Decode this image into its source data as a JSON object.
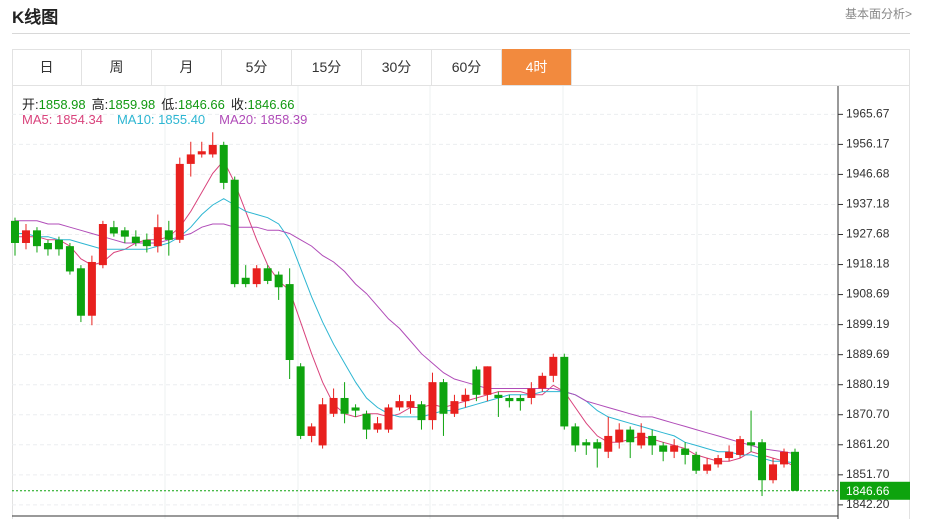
{
  "header": {
    "title": "K线图",
    "link": "基本面分析>"
  },
  "tabs": [
    {
      "label": "日"
    },
    {
      "label": "周"
    },
    {
      "label": "月"
    },
    {
      "label": "5分"
    },
    {
      "label": "15分"
    },
    {
      "label": "30分"
    },
    {
      "label": "60分"
    },
    {
      "label": "4时",
      "active": true
    }
  ],
  "chart_data": {
    "type": "candlestick",
    "info": [
      {
        "label": "开:",
        "value": 1858.98
      },
      {
        "label": "高:",
        "value": 1859.98
      },
      {
        "label": "低:",
        "value": 1846.66
      },
      {
        "label": "收:",
        "value": 1846.66
      }
    ],
    "info_color": "#119911",
    "up_color": "#e8201e",
    "down_color": "#0ea30e",
    "ylim": [
      1839,
      1974
    ],
    "yticks": [
      1965.67,
      1956.17,
      1946.68,
      1937.18,
      1927.68,
      1918.18,
      1908.69,
      1899.19,
      1889.69,
      1880.19,
      {
        "value": 1870.7,
        "label": "1870.70"
      },
      {
        "value": 1861.2,
        "label": "1861.20"
      },
      {
        "value": 1851.7,
        "label": "1851.70"
      },
      {
        "value": 1842.2,
        "label": "1842.20"
      }
    ],
    "grid": true,
    "last_price": 1846.66,
    "candles": [
      {
        "open": 1932,
        "high": 1933,
        "low": 1921,
        "close": 1925
      },
      {
        "open": 1925,
        "high": 1931,
        "low": 1923,
        "close": 1929
      },
      {
        "open": 1929,
        "high": 1930,
        "low": 1922,
        "close": 1924
      },
      {
        "open": 1925,
        "high": 1926,
        "low": 1921,
        "close": 1923
      },
      {
        "open": 1926,
        "high": 1927,
        "low": 1921,
        "close": 1923
      },
      {
        "open": 1924,
        "high": 1925,
        "low": 1915,
        "close": 1916
      },
      {
        "open": 1917,
        "high": 1918,
        "low": 1900,
        "close": 1902
      },
      {
        "open": 1902,
        "high": 1921,
        "low": 1899,
        "close": 1919
      },
      {
        "open": 1918,
        "high": 1932,
        "low": 1917,
        "close": 1931
      },
      {
        "open": 1930,
        "high": 1932,
        "low": 1927,
        "close": 1928
      },
      {
        "open": 1929,
        "high": 1930,
        "low": 1925,
        "close": 1927
      },
      {
        "open": 1927,
        "high": 1929,
        "low": 1924,
        "close": 1925
      },
      {
        "open": 1926,
        "high": 1928,
        "low": 1922,
        "close": 1924
      },
      {
        "open": 1924,
        "high": 1934,
        "low": 1922,
        "close": 1930
      },
      {
        "open": 1929,
        "high": 1932,
        "low": 1921,
        "close": 1926
      },
      {
        "open": 1926,
        "high": 1952,
        "low": 1925,
        "close": 1950
      },
      {
        "open": 1950,
        "high": 1957,
        "low": 1946,
        "close": 1953
      },
      {
        "open": 1953,
        "high": 1957,
        "low": 1952,
        "close": 1954
      },
      {
        "open": 1953,
        "high": 1960,
        "low": 1952,
        "close": 1956
      },
      {
        "open": 1956,
        "high": 1957,
        "low": 1942,
        "close": 1944
      },
      {
        "open": 1945,
        "high": 1946,
        "low": 1911,
        "close": 1912
      },
      {
        "open": 1914,
        "high": 1918,
        "low": 1911,
        "close": 1912
      },
      {
        "open": 1912,
        "high": 1918,
        "low": 1911,
        "close": 1917
      },
      {
        "open": 1917,
        "high": 1918,
        "low": 1912,
        "close": 1913
      },
      {
        "open": 1915,
        "high": 1916,
        "low": 1907,
        "close": 1911
      },
      {
        "open": 1912,
        "high": 1917,
        "low": 1882,
        "close": 1888
      },
      {
        "open": 1886,
        "high": 1887,
        "low": 1863,
        "close": 1864
      },
      {
        "open": 1864,
        "high": 1868,
        "low": 1862,
        "close": 1867
      },
      {
        "open": 1861,
        "high": 1876,
        "low": 1860,
        "close": 1874
      },
      {
        "open": 1871,
        "high": 1879,
        "low": 1870,
        "close": 1876
      },
      {
        "open": 1876,
        "high": 1881,
        "low": 1868,
        "close": 1871
      },
      {
        "open": 1873,
        "high": 1874,
        "low": 1870,
        "close": 1872
      },
      {
        "open": 1871,
        "high": 1872,
        "low": 1863,
        "close": 1866
      },
      {
        "open": 1866,
        "high": 1870,
        "low": 1865,
        "close": 1868
      },
      {
        "open": 1866,
        "high": 1874,
        "low": 1865,
        "close": 1873
      },
      {
        "open": 1873,
        "high": 1877,
        "low": 1872,
        "close": 1875
      },
      {
        "open": 1873,
        "high": 1877,
        "low": 1871,
        "close": 1875
      },
      {
        "open": 1874,
        "high": 1875,
        "low": 1866,
        "close": 1869
      },
      {
        "open": 1869,
        "high": 1884,
        "low": 1866,
        "close": 1881
      },
      {
        "open": 1881,
        "high": 1882,
        "low": 1864,
        "close": 1871
      },
      {
        "open": 1871,
        "high": 1877,
        "low": 1870,
        "close": 1875
      },
      {
        "open": 1875,
        "high": 1879,
        "low": 1873,
        "close": 1877
      },
      {
        "open": 1885,
        "high": 1886,
        "low": 1875,
        "close": 1877
      },
      {
        "open": 1877,
        "high": 1886,
        "low": 1875,
        "close": 1886
      },
      {
        "open": 1877,
        "high": 1878,
        "low": 1870,
        "close": 1876
      },
      {
        "open": 1876,
        "high": 1877,
        "low": 1873,
        "close": 1875
      },
      {
        "open": 1876,
        "high": 1877,
        "low": 1872,
        "close": 1875
      },
      {
        "open": 1876,
        "high": 1881,
        "low": 1874,
        "close": 1879
      },
      {
        "open": 1879,
        "high": 1884,
        "low": 1878,
        "close": 1883
      },
      {
        "open": 1883,
        "high": 1890,
        "low": 1881,
        "close": 1889
      },
      {
        "open": 1889,
        "high": 1890,
        "low": 1866,
        "close": 1867
      },
      {
        "open": 1867,
        "high": 1868,
        "low": 1859,
        "close": 1861
      },
      {
        "open": 1862,
        "high": 1863,
        "low": 1858,
        "close": 1861
      },
      {
        "open": 1862,
        "high": 1863,
        "low": 1854,
        "close": 1860
      },
      {
        "open": 1859,
        "high": 1870,
        "low": 1857,
        "close": 1864
      },
      {
        "open": 1862,
        "high": 1868,
        "low": 1860,
        "close": 1866
      },
      {
        "open": 1866,
        "high": 1867,
        "low": 1857,
        "close": 1862
      },
      {
        "open": 1861,
        "high": 1868,
        "low": 1860,
        "close": 1865
      },
      {
        "open": 1864,
        "high": 1866,
        "low": 1858,
        "close": 1861
      },
      {
        "open": 1861,
        "high": 1862,
        "low": 1856,
        "close": 1859
      },
      {
        "open": 1859,
        "high": 1863,
        "low": 1857,
        "close": 1861
      },
      {
        "open": 1860,
        "high": 1862,
        "low": 1855,
        "close": 1858
      },
      {
        "open": 1858,
        "high": 1859,
        "low": 1852,
        "close": 1853
      },
      {
        "open": 1853,
        "high": 1857,
        "low": 1852,
        "close": 1855
      },
      {
        "open": 1855,
        "high": 1858,
        "low": 1854,
        "close": 1857
      },
      {
        "open": 1857,
        "high": 1861,
        "low": 1856,
        "close": 1859
      },
      {
        "open": 1858,
        "high": 1864,
        "low": 1857,
        "close": 1863
      },
      {
        "open": 1862,
        "high": 1872,
        "low": 1859,
        "close": 1861
      },
      {
        "open": 1862,
        "high": 1863,
        "low": 1845,
        "close": 1850
      },
      {
        "open": 1850,
        "high": 1857,
        "low": 1849,
        "close": 1855
      },
      {
        "open": 1855,
        "high": 1860,
        "low": 1854,
        "close": 1859
      },
      {
        "open": 1858.98,
        "high": 1859.98,
        "low": 1846.66,
        "close": 1846.66
      }
    ],
    "series": [
      {
        "name": "MA5:",
        "color": "#d9437c",
        "current": 1854.34,
        "values": [
          1927,
          1927,
          1927,
          1926,
          1926,
          1924,
          1920,
          1918,
          1919,
          1922,
          1923,
          1925,
          1926,
          1926,
          1927,
          1930,
          1935,
          1941,
          1947,
          1951,
          1944,
          1935,
          1926,
          1918,
          1913,
          1910,
          1900,
          1890,
          1881,
          1874,
          1871,
          1870,
          1871,
          1871,
          1870,
          1871,
          1873,
          1873,
          1874,
          1873,
          1874,
          1875,
          1876,
          1877,
          1878,
          1878,
          1878,
          1877,
          1877,
          1880,
          1878,
          1873,
          1868,
          1864,
          1862,
          1862,
          1863,
          1864,
          1863,
          1862,
          1861,
          1860,
          1858,
          1857,
          1856,
          1856,
          1857,
          1859,
          1858,
          1857,
          1856,
          1854.34
        ]
      },
      {
        "name": "MA10:",
        "color": "#2db6d2",
        "current": {
          "value": 1855.4,
          "label": "1855.40"
        },
        "values": [
          1928,
          1928,
          1927,
          1927,
          1926,
          1926,
          1925,
          1924,
          1923,
          1923,
          1923,
          1923,
          1923,
          1924,
          1925,
          1927,
          1930,
          1934,
          1937,
          1939,
          1937,
          1935,
          1934,
          1933,
          1931,
          1926,
          1917,
          1908,
          1900,
          1893,
          1887,
          1881,
          1876,
          1873,
          1871,
          1870,
          1870,
          1870,
          1871,
          1872,
          1872,
          1873,
          1874,
          1875,
          1876,
          1877,
          1877,
          1877,
          1878,
          1878,
          1878,
          1877,
          1875,
          1872,
          1870,
          1869,
          1868,
          1867,
          1866,
          1865,
          1864,
          1862,
          1861,
          1860,
          1859,
          1859,
          1858,
          1858,
          1857,
          1856,
          1856,
          1855.4
        ]
      },
      {
        "name": "MA20:",
        "color": "#b04cb8",
        "current": 1858.39,
        "values": [
          1932,
          1932,
          1932,
          1931,
          1931,
          1930,
          1929,
          1928,
          1927,
          1926,
          1925,
          1925,
          1925,
          1925,
          1926,
          1927,
          1928,
          1930,
          1931,
          1931,
          1930,
          1930,
          1930,
          1929,
          1929,
          1928,
          1926,
          1924,
          1921,
          1919,
          1916,
          1912,
          1909,
          1905,
          1901,
          1898,
          1894,
          1890,
          1887,
          1884,
          1882,
          1881,
          1880,
          1879,
          1879,
          1879,
          1879,
          1879,
          1879,
          1879,
          1878,
          1877,
          1875,
          1874,
          1873,
          1872,
          1871,
          1870,
          1870,
          1869,
          1868,
          1867,
          1866,
          1865,
          1864,
          1863,
          1862,
          1861,
          1860,
          1859.5,
          1859,
          1858.39
        ]
      }
    ]
  }
}
